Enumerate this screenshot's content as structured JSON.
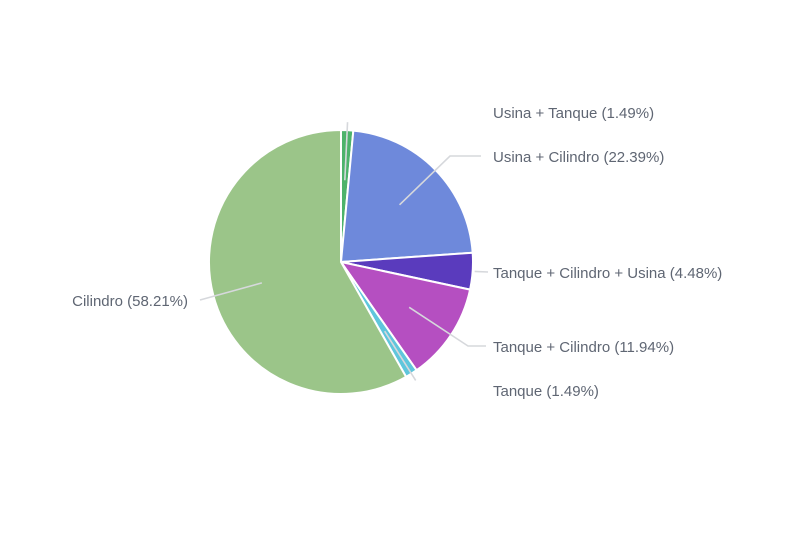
{
  "chart_data": {
    "type": "pie",
    "title": "",
    "slices": [
      {
        "label": "Usina + Tanque",
        "value": 1.49,
        "display": "Usina + Tanque (1.49%)",
        "color": "#4db36b"
      },
      {
        "label": "Usina + Cilindro",
        "value": 22.39,
        "display": "Usina + Cilindro (22.39%)",
        "color": "#6e89db"
      },
      {
        "label": "Tanque + Cilindro + Usina",
        "value": 4.48,
        "display": "Tanque + Cilindro + Usina (4.48%)",
        "color": "#5a3bbd"
      },
      {
        "label": "Tanque + Cilindro",
        "value": 11.94,
        "display": "Tanque + Cilindro (11.94%)",
        "color": "#b54fc1"
      },
      {
        "label": "Tanque",
        "value": 1.49,
        "display": "Tanque (1.49%)",
        "color": "#5fc6dc"
      },
      {
        "label": "Cilindro",
        "value": 58.21,
        "display": "Cilindro (58.21%)",
        "color": "#9bc589"
      }
    ],
    "start_angle_deg": 0,
    "direction": "clockwise",
    "legend": "none",
    "labels": "outside-with-leader-lines"
  }
}
